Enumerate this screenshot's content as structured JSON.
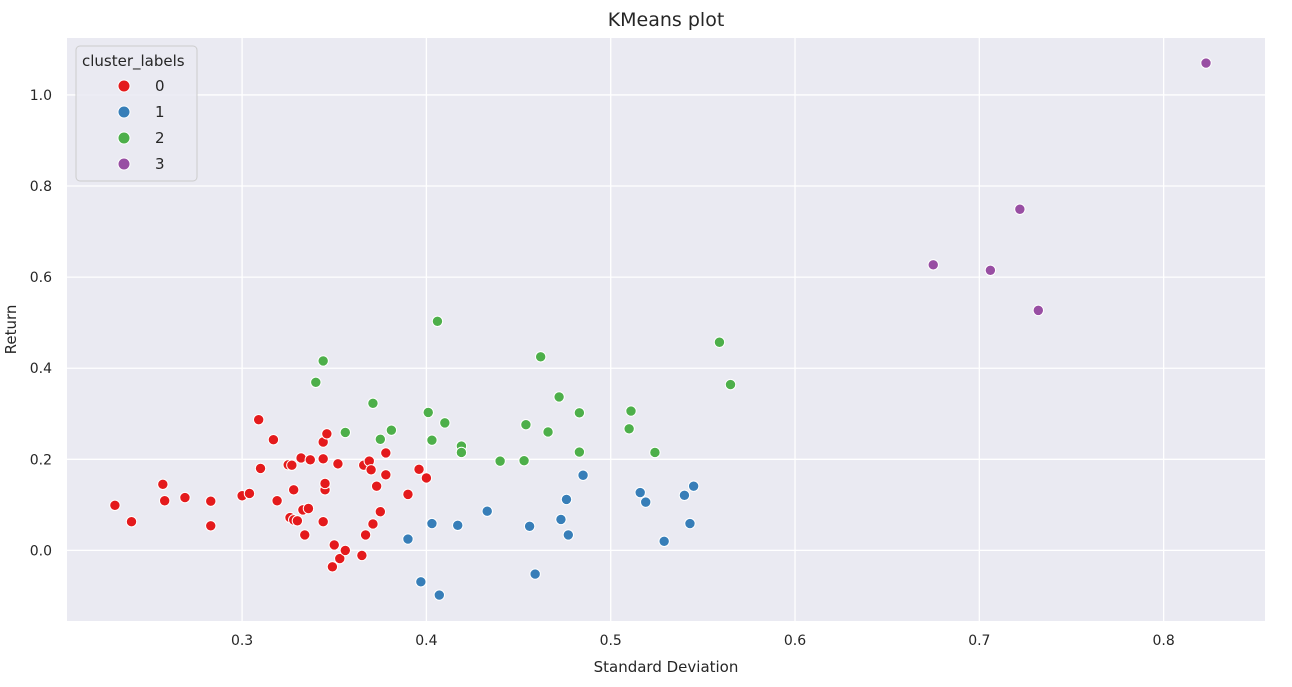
{
  "chart_data": {
    "type": "scatter",
    "title": "KMeans plot",
    "xlabel": "Standard Deviation",
    "ylabel": "Return",
    "xlim": [
      0.205,
      0.855
    ],
    "ylim": [
      -0.155,
      1.125
    ],
    "x_ticks": [
      0.3,
      0.4,
      0.5,
      0.6,
      0.7,
      0.8
    ],
    "y_ticks": [
      0.0,
      0.2,
      0.4,
      0.6,
      0.8,
      1.0
    ],
    "x_tick_labels": [
      "0.3",
      "0.4",
      "0.5",
      "0.6",
      "0.7",
      "0.8"
    ],
    "y_tick_labels": [
      "0.0",
      "0.2",
      "0.4",
      "0.6",
      "0.8",
      "1.0"
    ],
    "grid": true,
    "background": "#eaeaf2",
    "grid_color": "#ffffff",
    "legend": {
      "title": "cluster_labels",
      "placement": "top-left"
    },
    "series": [
      {
        "name": "0",
        "color": "#e41a1c",
        "points": [
          [
            0.231,
            0.099
          ],
          [
            0.24,
            0.063
          ],
          [
            0.257,
            0.145
          ],
          [
            0.258,
            0.109
          ],
          [
            0.269,
            0.116
          ],
          [
            0.283,
            0.108
          ],
          [
            0.283,
            0.054
          ],
          [
            0.3,
            0.12
          ],
          [
            0.304,
            0.125
          ],
          [
            0.309,
            0.287
          ],
          [
            0.31,
            0.18
          ],
          [
            0.317,
            0.243
          ],
          [
            0.319,
            0.109
          ],
          [
            0.325,
            0.188
          ],
          [
            0.326,
            0.072
          ],
          [
            0.327,
            0.187
          ],
          [
            0.328,
            0.067
          ],
          [
            0.328,
            0.133
          ],
          [
            0.33,
            0.065
          ],
          [
            0.332,
            0.203
          ],
          [
            0.333,
            0.089
          ],
          [
            0.334,
            0.034
          ],
          [
            0.336,
            0.092
          ],
          [
            0.337,
            0.199
          ],
          [
            0.344,
            0.201
          ],
          [
            0.344,
            0.238
          ],
          [
            0.344,
            0.063
          ],
          [
            0.345,
            0.133
          ],
          [
            0.345,
            0.147
          ],
          [
            0.346,
            0.256
          ],
          [
            0.349,
            -0.036
          ],
          [
            0.35,
            0.012
          ],
          [
            0.352,
            0.19
          ],
          [
            0.353,
            -0.018
          ],
          [
            0.356,
            0.0
          ],
          [
            0.365,
            -0.011
          ],
          [
            0.366,
            0.187
          ],
          [
            0.367,
            0.034
          ],
          [
            0.369,
            0.196
          ],
          [
            0.37,
            0.177
          ],
          [
            0.371,
            0.058
          ],
          [
            0.373,
            0.141
          ],
          [
            0.375,
            0.085
          ],
          [
            0.378,
            0.214
          ],
          [
            0.378,
            0.166
          ],
          [
            0.39,
            0.123
          ],
          [
            0.396,
            0.178
          ],
          [
            0.4,
            0.159
          ]
        ]
      },
      {
        "name": "1",
        "color": "#377eb8",
        "points": [
          [
            0.39,
            0.025
          ],
          [
            0.397,
            -0.069
          ],
          [
            0.403,
            0.059
          ],
          [
            0.407,
            -0.098
          ],
          [
            0.417,
            0.055
          ],
          [
            0.433,
            0.086
          ],
          [
            0.456,
            0.053
          ],
          [
            0.459,
            -0.052
          ],
          [
            0.473,
            0.068
          ],
          [
            0.476,
            0.112
          ],
          [
            0.477,
            0.034
          ],
          [
            0.485,
            0.165
          ],
          [
            0.516,
            0.127
          ],
          [
            0.519,
            0.106
          ],
          [
            0.529,
            0.02
          ],
          [
            0.54,
            0.121
          ],
          [
            0.543,
            0.059
          ],
          [
            0.545,
            0.141
          ]
        ]
      },
      {
        "name": "2",
        "color": "#4daf4a",
        "points": [
          [
            0.34,
            0.369
          ],
          [
            0.344,
            0.416
          ],
          [
            0.356,
            0.259
          ],
          [
            0.371,
            0.323
          ],
          [
            0.375,
            0.244
          ],
          [
            0.381,
            0.264
          ],
          [
            0.401,
            0.303
          ],
          [
            0.403,
            0.242
          ],
          [
            0.406,
            0.503
          ],
          [
            0.41,
            0.28
          ],
          [
            0.419,
            0.229
          ],
          [
            0.419,
            0.215
          ],
          [
            0.44,
            0.196
          ],
          [
            0.453,
            0.197
          ],
          [
            0.454,
            0.276
          ],
          [
            0.462,
            0.425
          ],
          [
            0.466,
            0.26
          ],
          [
            0.472,
            0.337
          ],
          [
            0.483,
            0.302
          ],
          [
            0.483,
            0.216
          ],
          [
            0.51,
            0.267
          ],
          [
            0.511,
            0.306
          ],
          [
            0.524,
            0.215
          ],
          [
            0.559,
            0.457
          ],
          [
            0.565,
            0.364
          ]
        ]
      },
      {
        "name": "3",
        "color": "#984ea3",
        "points": [
          [
            0.675,
            0.627
          ],
          [
            0.706,
            0.615
          ],
          [
            0.722,
            0.749
          ],
          [
            0.732,
            0.527
          ],
          [
            0.823,
            1.07
          ]
        ]
      }
    ]
  }
}
